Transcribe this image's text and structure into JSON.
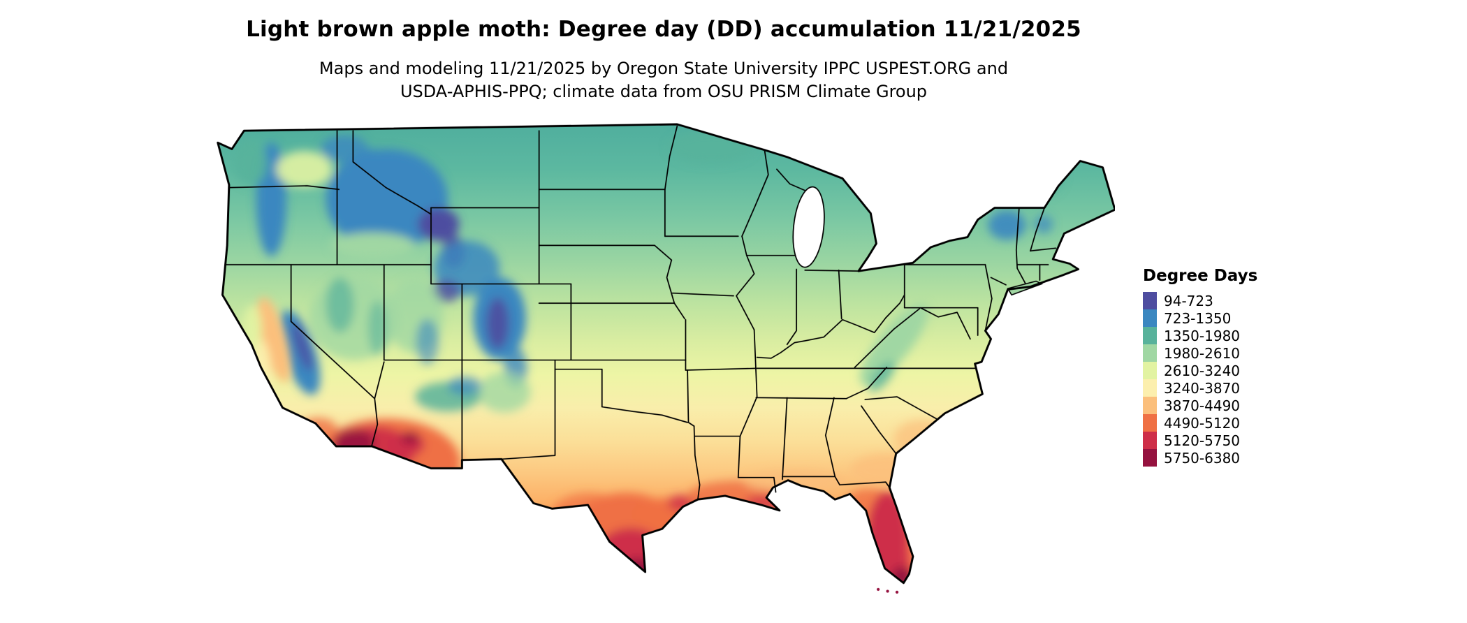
{
  "title": "Light brown apple moth: Degree day (DD) accumulation 11/21/2025",
  "subtitle_line1": "Maps and modeling 11/21/2025 by Oregon State University IPPC USPEST.ORG and",
  "subtitle_line2": "USDA-APHIS-PPQ; climate data from OSU PRISM Climate Group",
  "map": {
    "region": "Continental United States",
    "outline_color": "#000000",
    "water_color": "#ffffff"
  },
  "legend": {
    "title": "Degree Days",
    "entries": [
      {
        "range": "94-723",
        "color": "#4e4da0"
      },
      {
        "range": "723-1350",
        "color": "#3b87c0"
      },
      {
        "range": "1350-1980",
        "color": "#58b29b"
      },
      {
        "range": "1980-2610",
        "color": "#a0d7a3"
      },
      {
        "range": "2610-3240",
        "color": "#e2f3a2"
      },
      {
        "range": "3240-3870",
        "color": "#fcefae"
      },
      {
        "range": "3870-4490",
        "color": "#fbbf7c"
      },
      {
        "range": "4490-5120",
        "color": "#ef7044"
      },
      {
        "range": "5120-5750",
        "color": "#ce2e48"
      },
      {
        "range": "5750-6380",
        "color": "#95123f"
      }
    ]
  }
}
